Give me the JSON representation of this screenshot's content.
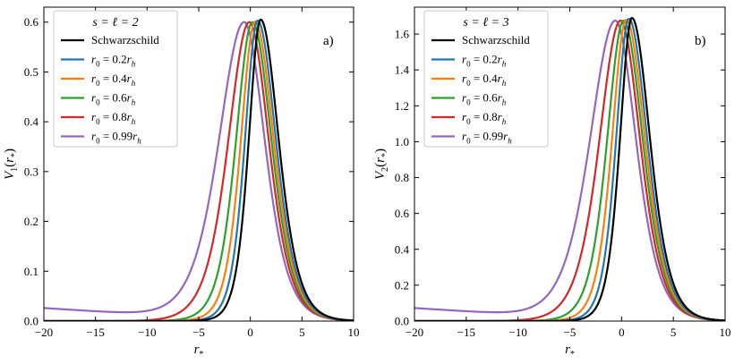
{
  "colors": {
    "schwarzschild": "#000000",
    "r0_0.2": "#1f77b4",
    "r0_0.4": "#ff7f0e",
    "r0_0.6": "#2ca02c",
    "r0_0.8": "#d62728",
    "r0_0.99": "#9467bd"
  },
  "chart_data": [
    {
      "type": "line",
      "panel_label": "a)",
      "legend_title": "s = ℓ = 2",
      "xlabel": "r*",
      "ylabel": "V1(r*)",
      "xlim": [
        -20,
        10
      ],
      "ylim": [
        0,
        0.63
      ],
      "xticks": [
        -20,
        -15,
        -10,
        -5,
        0,
        5,
        10
      ],
      "yticks": [
        0.0,
        0.1,
        0.2,
        0.3,
        0.4,
        0.5,
        0.6
      ],
      "ytick_labels": [
        "0.0",
        "0.1",
        "0.2",
        "0.3",
        "0.4",
        "0.5",
        "0.6"
      ],
      "series": [
        {
          "name": "Schwarzschild",
          "color_key": "schwarzschild",
          "peak_x": 1.0,
          "peak_y": 0.605,
          "left_width": 1.55,
          "right_width": 2.35,
          "left_tail": 0.0
        },
        {
          "name": "r0 = 0.2rh",
          "color_key": "r0_0.2",
          "peak_x": 0.7,
          "peak_y": 0.603,
          "left_width": 1.65,
          "right_width": 2.4,
          "left_tail": 0.0
        },
        {
          "name": "r0 = 0.4rh",
          "color_key": "r0_0.4",
          "peak_x": 0.45,
          "peak_y": 0.601,
          "left_width": 1.85,
          "right_width": 2.45,
          "left_tail": 0.0
        },
        {
          "name": "r0 = 0.6rh",
          "color_key": "r0_0.6",
          "peak_x": 0.2,
          "peak_y": 0.6,
          "left_width": 2.15,
          "right_width": 2.5,
          "left_tail": 0.0
        },
        {
          "name": "r0 = 0.8rh",
          "color_key": "r0_0.8",
          "peak_x": -0.1,
          "peak_y": 0.6,
          "left_width": 2.75,
          "right_width": 2.55,
          "left_tail": 0.0
        },
        {
          "name": "r0 = 0.99rh",
          "color_key": "r0_0.99",
          "peak_x": -0.6,
          "peak_y": 0.6,
          "left_width": 3.3,
          "right_width": 2.7,
          "left_tail": 0.027
        }
      ]
    },
    {
      "type": "line",
      "panel_label": "b)",
      "legend_title": "s = ℓ = 3",
      "xlabel": "r*",
      "ylabel": "V2(r*)",
      "xlim": [
        -20,
        10
      ],
      "ylim": [
        0,
        1.75
      ],
      "xticks": [
        -20,
        -15,
        -10,
        -5,
        0,
        5,
        10
      ],
      "yticks": [
        0.0,
        0.2,
        0.4,
        0.6,
        0.8,
        1.0,
        1.2,
        1.4,
        1.6
      ],
      "ytick_labels": [
        "0.0",
        "0.2",
        "0.4",
        "0.6",
        "0.8",
        "1.0",
        "1.2",
        "1.4",
        "1.6"
      ],
      "series": [
        {
          "name": "Schwarzschild",
          "color_key": "schwarzschild",
          "peak_x": 1.0,
          "peak_y": 1.69,
          "left_width": 1.55,
          "right_width": 2.35,
          "left_tail": 0.0
        },
        {
          "name": "r0 = 0.2rh",
          "color_key": "r0_0.2",
          "peak_x": 0.7,
          "peak_y": 1.685,
          "left_width": 1.65,
          "right_width": 2.4,
          "left_tail": 0.0
        },
        {
          "name": "r0 = 0.4rh",
          "color_key": "r0_0.4",
          "peak_x": 0.45,
          "peak_y": 1.68,
          "left_width": 1.85,
          "right_width": 2.45,
          "left_tail": 0.0
        },
        {
          "name": "r0 = 0.6rh",
          "color_key": "r0_0.6",
          "peak_x": 0.2,
          "peak_y": 1.675,
          "left_width": 2.15,
          "right_width": 2.5,
          "left_tail": 0.0
        },
        {
          "name": "r0 = 0.8rh",
          "color_key": "r0_0.8",
          "peak_x": -0.1,
          "peak_y": 1.675,
          "left_width": 2.75,
          "right_width": 2.55,
          "left_tail": 0.0
        },
        {
          "name": "r0 = 0.99rh",
          "color_key": "r0_0.99",
          "peak_x": -0.6,
          "peak_y": 1.675,
          "left_width": 3.3,
          "right_width": 2.7,
          "left_tail": 0.075
        }
      ]
    }
  ]
}
